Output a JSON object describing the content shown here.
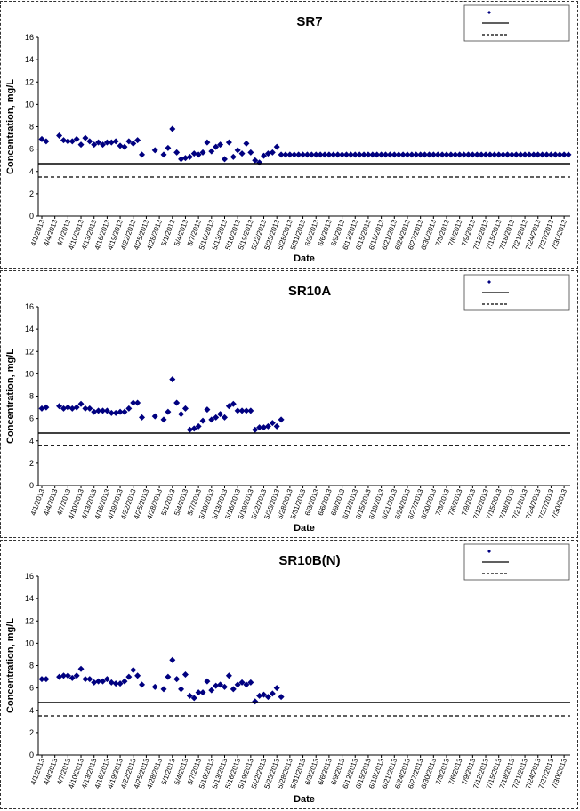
{
  "chart_data": [
    {
      "type": "scatter",
      "title": "SR7",
      "xlabel": "Date",
      "ylabel": "Concentration, mg/L",
      "ylim": [
        0,
        16
      ],
      "yticks": [
        0,
        2,
        4,
        6,
        8,
        10,
        12,
        14,
        16
      ],
      "grid": false,
      "legend_position": "top-right",
      "xtick_labels": [
        "4/1/2013",
        "4/4/2013",
        "4/7/2013",
        "4/10/2013",
        "4/13/2013",
        "4/16/2013",
        "4/19/2013",
        "4/22/2013",
        "4/25/2013",
        "4/28/2013",
        "5/1/2013",
        "5/4/2013",
        "5/7/2013",
        "5/10/2013",
        "5/13/2013",
        "5/16/2013",
        "5/19/2013",
        "5/22/2013",
        "5/25/2013",
        "5/28/2013",
        "5/31/2013",
        "6/3/2013",
        "6/6/2013",
        "6/9/2013",
        "6/12/2013",
        "6/15/2013",
        "6/18/2013",
        "6/21/2013",
        "6/24/2013",
        "6/27/2013",
        "6/30/2013",
        "7/3/2013",
        "7/6/2013",
        "7/9/2013",
        "7/12/2013",
        "7/15/2013",
        "7/18/2013",
        "7/21/2013",
        "7/24/2013",
        "7/27/2013",
        "7/30/2013"
      ],
      "day_labels": [
        1,
        4,
        7,
        10,
        13,
        16,
        19,
        22,
        25,
        28,
        31,
        34,
        37,
        40,
        43,
        46,
        49,
        52,
        55,
        58,
        61,
        64,
        67,
        70,
        73,
        76,
        79,
        82,
        85,
        88,
        91,
        94,
        97,
        100,
        103,
        106,
        109,
        112,
        115,
        118,
        121
      ],
      "x_range": [
        1,
        122
      ],
      "series": [
        {
          "type": "markers",
          "color": "#000080",
          "x": [
            1,
            2,
            5,
            6,
            7,
            8,
            9,
            10,
            11,
            12,
            13,
            14,
            15,
            16,
            17,
            18,
            19,
            20,
            21,
            22,
            23,
            24,
            27,
            29,
            30,
            31,
            32,
            33,
            34,
            35,
            36,
            37,
            38,
            39,
            40,
            41,
            42,
            43,
            44,
            45,
            46,
            47,
            48,
            49,
            50,
            51,
            52,
            53,
            54,
            55,
            56,
            57,
            58,
            59,
            60,
            61,
            62,
            63,
            64,
            65,
            66,
            67,
            68,
            69,
            70,
            71,
            72,
            73,
            74,
            75,
            76,
            77,
            78,
            79,
            80,
            81,
            82,
            83,
            84,
            85,
            86,
            87,
            88,
            89,
            90,
            91,
            92,
            93,
            94,
            95,
            96,
            97,
            98,
            99,
            100,
            101,
            102,
            103,
            104,
            105,
            106,
            107,
            108,
            109,
            110,
            111,
            112,
            113,
            114,
            115,
            116,
            117,
            118,
            119,
            120,
            121,
            122
          ],
          "y": [
            6.9,
            6.7,
            7.2,
            6.8,
            6.7,
            6.7,
            6.9,
            6.4,
            7.0,
            6.7,
            6.4,
            6.6,
            6.4,
            6.6,
            6.6,
            6.7,
            6.3,
            6.2,
            6.7,
            6.5,
            6.8,
            5.5,
            5.9,
            5.5,
            6.1,
            7.8,
            5.7,
            5.1,
            5.2,
            5.3,
            5.6,
            5.5,
            5.7,
            6.6,
            5.8,
            6.2,
            6.4,
            5.1,
            6.6,
            5.3,
            5.9,
            5.6,
            6.5,
            5.7,
            5.0,
            4.8,
            5.4,
            5.6,
            5.7,
            6.2,
            5.5,
            5.5,
            5.5,
            5.5,
            5.5,
            5.5,
            5.5,
            5.5,
            5.5,
            5.5,
            5.5,
            5.5,
            5.5,
            5.5,
            5.5,
            5.5,
            5.5,
            5.5,
            5.5,
            5.5,
            5.5,
            5.5,
            5.5,
            5.5,
            5.5,
            5.5,
            5.5,
            5.5,
            5.5,
            5.5,
            5.5,
            5.5,
            5.5,
            5.5,
            5.5,
            5.5,
            5.5,
            5.5,
            5.5,
            5.5,
            5.5,
            5.5,
            5.5,
            5.5,
            5.5,
            5.5,
            5.5,
            5.5,
            5.5,
            5.5,
            5.5,
            5.5,
            5.5,
            5.5,
            5.5,
            5.5,
            5.5,
            5.5,
            5.5,
            5.5,
            5.5,
            5.5,
            5.5,
            5.5,
            5.5,
            5.5,
            5.5
          ]
        },
        {
          "type": "solid-line",
          "color": "#000000",
          "y_const": 4.7
        },
        {
          "type": "dashed-line",
          "color": "#000000",
          "y_const": 3.5
        }
      ]
    },
    {
      "type": "scatter",
      "title": "SR10A",
      "xlabel": "Date",
      "ylabel": "Concentration, mg/L",
      "ylim": [
        0,
        16
      ],
      "yticks": [
        0,
        2,
        4,
        6,
        8,
        10,
        12,
        14,
        16
      ],
      "grid": false,
      "legend_position": "top-right",
      "xtick_labels": [
        "4/1/2013",
        "4/4/2013",
        "4/7/2013",
        "4/10/2013",
        "4/13/2013",
        "4/16/2013",
        "4/19/2013",
        "4/22/2013",
        "4/25/2013",
        "4/28/2013",
        "5/1/2013",
        "5/4/2013",
        "5/7/2013",
        "5/10/2013",
        "5/13/2013",
        "5/16/2013",
        "5/19/2013",
        "5/22/2013",
        "5/25/2013",
        "5/28/2013",
        "5/31/2013",
        "6/3/2013",
        "6/6/2013",
        "6/9/2013",
        "6/12/2013",
        "6/15/2013",
        "6/18/2013",
        "6/21/2013",
        "6/24/2013",
        "6/27/2013",
        "6/30/2013",
        "7/3/2013",
        "7/6/2013",
        "7/9/2013",
        "7/12/2013",
        "7/15/2013",
        "7/18/2013",
        "7/21/2013",
        "7/24/2013",
        "7/27/2013",
        "7/30/2013"
      ],
      "day_labels": [
        1,
        4,
        7,
        10,
        13,
        16,
        19,
        22,
        25,
        28,
        31,
        34,
        37,
        40,
        43,
        46,
        49,
        52,
        55,
        58,
        61,
        64,
        67,
        70,
        73,
        76,
        79,
        82,
        85,
        88,
        91,
        94,
        97,
        100,
        103,
        106,
        109,
        112,
        115,
        118,
        121
      ],
      "x_range": [
        1,
        122
      ],
      "series": [
        {
          "type": "markers",
          "color": "#000080",
          "x": [
            1,
            2,
            5,
            6,
            7,
            8,
            9,
            10,
            11,
            12,
            13,
            14,
            15,
            16,
            17,
            18,
            19,
            20,
            21,
            22,
            23,
            24,
            27,
            29,
            30,
            31,
            32,
            33,
            34,
            35,
            36,
            37,
            38,
            39,
            40,
            41,
            42,
            43,
            44,
            45,
            46,
            47,
            48,
            49,
            50,
            51,
            52,
            53,
            54,
            55,
            56
          ],
          "y": [
            6.9,
            7.0,
            7.1,
            6.9,
            7.0,
            6.9,
            7.0,
            7.3,
            6.9,
            6.9,
            6.6,
            6.7,
            6.7,
            6.7,
            6.5,
            6.5,
            6.6,
            6.6,
            6.9,
            7.4,
            7.4,
            6.1,
            6.2,
            5.9,
            6.6,
            9.5,
            7.4,
            6.4,
            6.9,
            5.0,
            5.1,
            5.3,
            5.8,
            6.8,
            5.9,
            6.1,
            6.4,
            6.1,
            7.1,
            7.3,
            6.7,
            6.7,
            6.7,
            6.7,
            5.0,
            5.2,
            5.2,
            5.3,
            5.6,
            5.3,
            5.9
          ]
        },
        {
          "type": "solid-line",
          "color": "#000000",
          "y_const": 4.7
        },
        {
          "type": "dashed-line",
          "color": "#000000",
          "y_const": 3.6
        }
      ]
    },
    {
      "type": "scatter",
      "title": "SR10B(N)",
      "xlabel": "Date",
      "ylabel": "Concentration, mg/L",
      "ylim": [
        0,
        16
      ],
      "yticks": [
        0,
        2,
        4,
        6,
        8,
        10,
        12,
        14,
        16
      ],
      "grid": false,
      "legend_position": "top-right",
      "xtick_labels": [
        "4/1/2013",
        "4/4/2013",
        "4/7/2013",
        "4/10/2013",
        "4/13/2013",
        "4/16/2013",
        "4/19/2013",
        "4/22/2013",
        "4/25/2013",
        "4/28/2013",
        "5/1/2013",
        "5/4/2013",
        "5/7/2013",
        "5/10/2013",
        "5/13/2013",
        "5/16/2013",
        "5/19/2013",
        "5/22/2013",
        "5/25/2013",
        "5/28/2013",
        "5/31/2013",
        "6/3/2013",
        "6/6/2013",
        "6/9/2013",
        "6/12/2013",
        "6/15/2013",
        "6/18/2013",
        "6/21/2013",
        "6/24/2013",
        "6/27/2013",
        "6/30/2013",
        "7/3/2013",
        "7/6/2013",
        "7/9/2013",
        "7/12/2013",
        "7/15/2013",
        "7/18/2013",
        "7/21/2013",
        "7/24/2013",
        "7/27/2013",
        "7/30/2013"
      ],
      "day_labels": [
        1,
        4,
        7,
        10,
        13,
        16,
        19,
        22,
        25,
        28,
        31,
        34,
        37,
        40,
        43,
        46,
        49,
        52,
        55,
        58,
        61,
        64,
        67,
        70,
        73,
        76,
        79,
        82,
        85,
        88,
        91,
        94,
        97,
        100,
        103,
        106,
        109,
        112,
        115,
        118,
        121
      ],
      "x_range": [
        1,
        122
      ],
      "series": [
        {
          "type": "markers",
          "color": "#000080",
          "x": [
            1,
            2,
            5,
            6,
            7,
            8,
            9,
            10,
            11,
            12,
            13,
            14,
            15,
            16,
            17,
            18,
            19,
            20,
            21,
            22,
            23,
            24,
            27,
            29,
            30,
            31,
            32,
            33,
            34,
            35,
            36,
            37,
            38,
            39,
            40,
            41,
            42,
            43,
            44,
            45,
            46,
            47,
            48,
            49,
            50,
            51,
            52,
            53,
            54,
            55,
            56
          ],
          "y": [
            6.8,
            6.8,
            7.0,
            7.1,
            7.1,
            6.9,
            7.1,
            7.7,
            6.8,
            6.8,
            6.5,
            6.6,
            6.6,
            6.8,
            6.5,
            6.4,
            6.4,
            6.6,
            7.0,
            7.6,
            7.1,
            6.3,
            6.1,
            5.9,
            7.0,
            8.5,
            6.8,
            5.9,
            7.2,
            5.3,
            5.1,
            5.6,
            5.6,
            6.6,
            5.8,
            6.2,
            6.3,
            6.1,
            7.1,
            5.9,
            6.3,
            6.5,
            6.3,
            6.5,
            4.8,
            5.3,
            5.4,
            5.2,
            5.5,
            6.0,
            5.2
          ]
        },
        {
          "type": "solid-line",
          "color": "#000000",
          "y_const": 4.7
        },
        {
          "type": "dashed-line",
          "color": "#000000",
          "y_const": 3.5
        }
      ]
    }
  ]
}
